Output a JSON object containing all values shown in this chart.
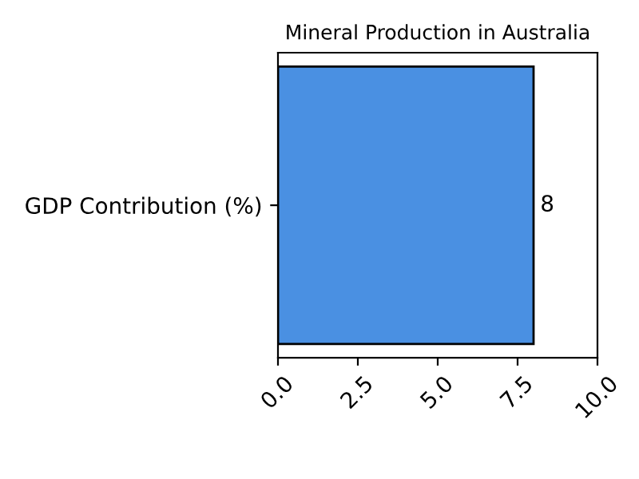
{
  "chart_data": {
    "type": "bar",
    "orientation": "horizontal",
    "title": "Mineral Production in Australia",
    "categories": [
      "GDP Contribution (%)"
    ],
    "values": [
      8
    ],
    "color": "#4a90e2",
    "xlim": [
      0,
      10
    ],
    "xticks": [
      {
        "value": 0,
        "label": "0.0"
      },
      2.5,
      {
        "value": 5,
        "label": "5.0"
      },
      7.5,
      {
        "value": 10,
        "label": "10.0"
      }
    ],
    "data_labels": true,
    "grid": false
  }
}
